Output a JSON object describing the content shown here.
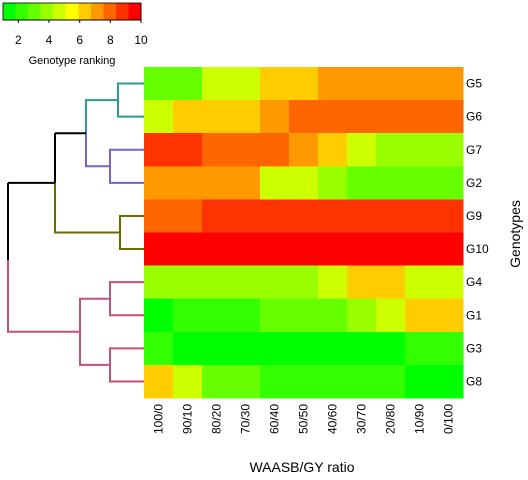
{
  "chart_data": {
    "type": "heatmap",
    "x_title": "WAASB/GY ratio",
    "y_title": "Genotypes",
    "columns": [
      "100/0",
      "90/10",
      "80/20",
      "70/30",
      "60/40",
      "50/50",
      "40/60",
      "30/70",
      "20/80",
      "10/90",
      "0/100"
    ],
    "rows": [
      {
        "label": "G5",
        "values": [
          3,
          3,
          5,
          5,
          6,
          6,
          7,
          7,
          7,
          7,
          7
        ]
      },
      {
        "label": "G6",
        "values": [
          5,
          6,
          6,
          6,
          7,
          8,
          8,
          8,
          8,
          8,
          8
        ]
      },
      {
        "label": "G7",
        "values": [
          9,
          9,
          8,
          8,
          8,
          7,
          6,
          5,
          4,
          4,
          4
        ]
      },
      {
        "label": "G2",
        "values": [
          7,
          7,
          7,
          7,
          5,
          5,
          4,
          3,
          3,
          3,
          3
        ]
      },
      {
        "label": "G9",
        "values": [
          8,
          8,
          9,
          9,
          9,
          9,
          9,
          9,
          9,
          9,
          9
        ]
      },
      {
        "label": "G10",
        "values": [
          10,
          10,
          10,
          10,
          10,
          10,
          10,
          10,
          10,
          10,
          10
        ]
      },
      {
        "label": "G4",
        "values": [
          4,
          4,
          4,
          4,
          4,
          4,
          5,
          6,
          6,
          5,
          5
        ]
      },
      {
        "label": "G1",
        "values": [
          1,
          2,
          2,
          2,
          3,
          3,
          3,
          4,
          5,
          6,
          6
        ]
      },
      {
        "label": "G3",
        "values": [
          2,
          1,
          1,
          1,
          1,
          1,
          1,
          1,
          1,
          2,
          2
        ]
      },
      {
        "label": "G8",
        "values": [
          6,
          5,
          3,
          3,
          2,
          2,
          2,
          2,
          2,
          1,
          1
        ]
      }
    ],
    "color_scale": {
      "title": "Genotype ranking",
      "min": 1,
      "max": 10,
      "ticks": [
        2,
        4,
        6,
        8,
        10
      ],
      "colors": [
        "#00ff00",
        "#33ff00",
        "#66ff00",
        "#99ff00",
        "#ccff00",
        "#ffff00",
        "#ffcc00",
        "#ff9900",
        "#ff6600",
        "#ff3300",
        "#ff0000"
      ]
    },
    "dendrogram": {
      "clusters": [
        {
          "name": "cluster-1",
          "members": [
            "G5",
            "G6",
            "G7",
            "G2"
          ],
          "color": "#2a9d8f",
          "sub_color": "#7b61c9"
        },
        {
          "name": "cluster-2",
          "members": [
            "G9",
            "G10"
          ],
          "color": "#6b6b00"
        },
        {
          "name": "cluster-3",
          "members": [
            "G4",
            "G1",
            "G3",
            "G8"
          ],
          "color": "#c2507b"
        }
      ],
      "root_color": "#000000"
    }
  }
}
